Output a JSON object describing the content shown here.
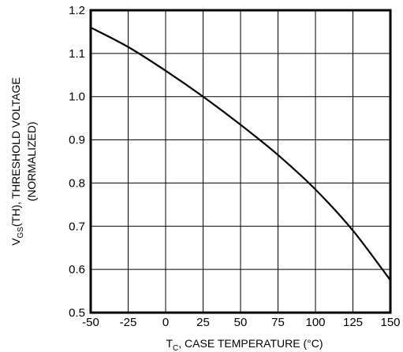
{
  "chart_data": {
    "type": "line",
    "xlabel": {
      "main": "T",
      "sub": "C",
      "rest": ", CASE TEMPERATURE (°C)"
    },
    "ylabel": {
      "main": "V",
      "sub": "GS",
      "rest": "(TH), THRESHOLD VOLTAGE"
    },
    "ylabel2": "(NORMALIZED)",
    "xlim": [
      -50,
      150
    ],
    "ylim": [
      0.5,
      1.2
    ],
    "grid": true,
    "x_ticks": [
      "-50",
      "-25",
      "0",
      "25",
      "50",
      "75",
      "100",
      "125",
      "150"
    ],
    "y_ticks": [
      "0.5",
      "0.6",
      "0.7",
      "0.8",
      "0.9",
      "1.0",
      "1.1",
      "1.2"
    ],
    "series": [
      {
        "x": [
          -50,
          -25,
          0,
          25,
          50,
          75,
          100,
          125,
          150
        ],
        "y": [
          1.16,
          1.115,
          1.06,
          1.0,
          0.935,
          0.865,
          0.785,
          0.69,
          0.575
        ]
      }
    ]
  }
}
